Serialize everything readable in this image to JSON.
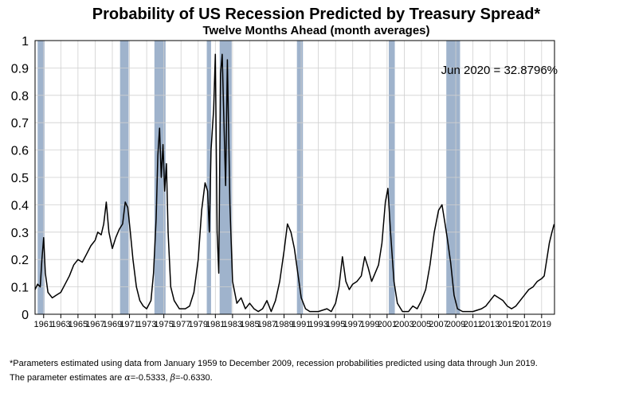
{
  "chart_data": {
    "type": "line",
    "title": "Probability of US Recession Predicted by Treasury Spread*",
    "subtitle": "Twelve Months Ahead (month averages)",
    "xlabel": "",
    "ylabel": "",
    "xlim": [
      1960,
      2020.5
    ],
    "ylim": [
      0,
      1
    ],
    "grid": true,
    "y_ticks": [
      "0",
      "0.1",
      "0.2",
      "0.3",
      "0.4",
      "0.5",
      "0.6",
      "0.7",
      "0.8",
      "0.9",
      "1"
    ],
    "x_ticks": [
      "1961",
      "1963",
      "1965",
      "1967",
      "1969",
      "1971",
      "1973",
      "1975",
      "1977",
      "1979",
      "1981",
      "1983",
      "1985",
      "1987",
      "1989",
      "1991",
      "1993",
      "1995",
      "1997",
      "1999",
      "2001",
      "2003",
      "2005",
      "2007",
      "2009",
      "2011",
      "2013",
      "2015",
      "2017",
      "2019"
    ],
    "annotation": "Jun 2020 = 32.8796%",
    "recession_color": "#9fb3cc",
    "line_color": "#000000",
    "recessions": [
      [
        1960.3,
        1961.1
      ],
      [
        1969.9,
        1970.9
      ],
      [
        1973.9,
        1975.2
      ],
      [
        1980.0,
        1980.5
      ],
      [
        1981.5,
        1982.9
      ],
      [
        1990.5,
        1991.2
      ],
      [
        2001.2,
        2001.9
      ],
      [
        2007.9,
        2009.5
      ]
    ],
    "series": [
      {
        "points": [
          [
            1960.0,
            0.09
          ],
          [
            1960.3,
            0.11
          ],
          [
            1960.6,
            0.1
          ],
          [
            1960.8,
            0.2
          ],
          [
            1961.0,
            0.28
          ],
          [
            1961.2,
            0.15
          ],
          [
            1961.5,
            0.08
          ],
          [
            1962.0,
            0.06
          ],
          [
            1962.5,
            0.07
          ],
          [
            1963.0,
            0.08
          ],
          [
            1963.5,
            0.11
          ],
          [
            1964.0,
            0.14
          ],
          [
            1964.5,
            0.18
          ],
          [
            1965.0,
            0.2
          ],
          [
            1965.5,
            0.19
          ],
          [
            1966.0,
            0.22
          ],
          [
            1966.5,
            0.25
          ],
          [
            1967.0,
            0.27
          ],
          [
            1967.3,
            0.3
          ],
          [
            1967.7,
            0.29
          ],
          [
            1968.0,
            0.33
          ],
          [
            1968.3,
            0.41
          ],
          [
            1968.6,
            0.3
          ],
          [
            1969.0,
            0.24
          ],
          [
            1969.4,
            0.28
          ],
          [
            1969.8,
            0.31
          ],
          [
            1970.2,
            0.33
          ],
          [
            1970.5,
            0.41
          ],
          [
            1970.8,
            0.39
          ],
          [
            1971.1,
            0.3
          ],
          [
            1971.4,
            0.2
          ],
          [
            1971.8,
            0.1
          ],
          [
            1972.2,
            0.05
          ],
          [
            1972.6,
            0.03
          ],
          [
            1973.0,
            0.02
          ],
          [
            1973.5,
            0.05
          ],
          [
            1973.8,
            0.15
          ],
          [
            1974.1,
            0.35
          ],
          [
            1974.3,
            0.58
          ],
          [
            1974.5,
            0.68
          ],
          [
            1974.7,
            0.5
          ],
          [
            1974.9,
            0.62
          ],
          [
            1975.1,
            0.45
          ],
          [
            1975.3,
            0.55
          ],
          [
            1975.5,
            0.3
          ],
          [
            1975.8,
            0.1
          ],
          [
            1976.2,
            0.05
          ],
          [
            1976.8,
            0.02
          ],
          [
            1977.5,
            0.02
          ],
          [
            1978.0,
            0.03
          ],
          [
            1978.5,
            0.08
          ],
          [
            1979.0,
            0.2
          ],
          [
            1979.4,
            0.38
          ],
          [
            1979.8,
            0.48
          ],
          [
            1980.1,
            0.45
          ],
          [
            1980.3,
            0.3
          ],
          [
            1980.5,
            0.6
          ],
          [
            1980.8,
            0.75
          ],
          [
            1981.0,
            0.95
          ],
          [
            1981.2,
            0.3
          ],
          [
            1981.4,
            0.15
          ],
          [
            1981.6,
            0.88
          ],
          [
            1981.8,
            0.95
          ],
          [
            1982.0,
            0.7
          ],
          [
            1982.2,
            0.47
          ],
          [
            1982.4,
            0.93
          ],
          [
            1982.7,
            0.4
          ],
          [
            1983.0,
            0.12
          ],
          [
            1983.5,
            0.04
          ],
          [
            1984.0,
            0.06
          ],
          [
            1984.5,
            0.02
          ],
          [
            1985.0,
            0.04
          ],
          [
            1985.5,
            0.02
          ],
          [
            1986.0,
            0.01
          ],
          [
            1986.5,
            0.02
          ],
          [
            1987.0,
            0.05
          ],
          [
            1987.5,
            0.01
          ],
          [
            1988.0,
            0.05
          ],
          [
            1988.5,
            0.12
          ],
          [
            1989.0,
            0.23
          ],
          [
            1989.4,
            0.33
          ],
          [
            1989.8,
            0.3
          ],
          [
            1990.2,
            0.24
          ],
          [
            1990.6,
            0.15
          ],
          [
            1991.0,
            0.06
          ],
          [
            1991.5,
            0.02
          ],
          [
            1992.0,
            0.01
          ],
          [
            1993.0,
            0.01
          ],
          [
            1994.0,
            0.02
          ],
          [
            1994.5,
            0.01
          ],
          [
            1995.0,
            0.04
          ],
          [
            1995.4,
            0.1
          ],
          [
            1995.8,
            0.21
          ],
          [
            1996.2,
            0.12
          ],
          [
            1996.6,
            0.09
          ],
          [
            1997.0,
            0.11
          ],
          [
            1997.5,
            0.12
          ],
          [
            1998.0,
            0.14
          ],
          [
            1998.4,
            0.21
          ],
          [
            1998.8,
            0.17
          ],
          [
            1999.2,
            0.12
          ],
          [
            1999.6,
            0.15
          ],
          [
            2000.0,
            0.18
          ],
          [
            2000.4,
            0.26
          ],
          [
            2000.8,
            0.41
          ],
          [
            2001.1,
            0.46
          ],
          [
            2001.4,
            0.3
          ],
          [
            2001.8,
            0.12
          ],
          [
            2002.2,
            0.04
          ],
          [
            2002.8,
            0.01
          ],
          [
            2003.5,
            0.01
          ],
          [
            2004.0,
            0.03
          ],
          [
            2004.5,
            0.02
          ],
          [
            2005.0,
            0.05
          ],
          [
            2005.5,
            0.09
          ],
          [
            2006.0,
            0.18
          ],
          [
            2006.5,
            0.3
          ],
          [
            2007.0,
            0.38
          ],
          [
            2007.4,
            0.4
          ],
          [
            2007.7,
            0.34
          ],
          [
            2008.0,
            0.28
          ],
          [
            2008.4,
            0.19
          ],
          [
            2008.8,
            0.07
          ],
          [
            2009.2,
            0.02
          ],
          [
            2009.8,
            0.01
          ],
          [
            2011.0,
            0.01
          ],
          [
            2012.0,
            0.02
          ],
          [
            2012.5,
            0.03
          ],
          [
            2013.0,
            0.05
          ],
          [
            2013.5,
            0.07
          ],
          [
            2014.0,
            0.06
          ],
          [
            2014.5,
            0.05
          ],
          [
            2015.0,
            0.03
          ],
          [
            2015.5,
            0.02
          ],
          [
            2016.0,
            0.03
          ],
          [
            2016.5,
            0.05
          ],
          [
            2017.0,
            0.07
          ],
          [
            2017.5,
            0.09
          ],
          [
            2018.0,
            0.1
          ],
          [
            2018.5,
            0.12
          ],
          [
            2019.0,
            0.13
          ],
          [
            2019.3,
            0.14
          ],
          [
            2019.6,
            0.2
          ],
          [
            2019.9,
            0.26
          ],
          [
            2020.2,
            0.3
          ],
          [
            2020.45,
            0.329
          ]
        ]
      }
    ]
  },
  "footnote": {
    "line1": "*Parameters estimated using data from January 1959 to December 2009, recession probabilities predicted using data through Jun 2019.",
    "line2_prefix": "The parameter estimates are ",
    "alpha_symbol": "α",
    "alpha_value": "=-0.5333, ",
    "beta_symbol": "β",
    "beta_value": "=-0.6330."
  }
}
